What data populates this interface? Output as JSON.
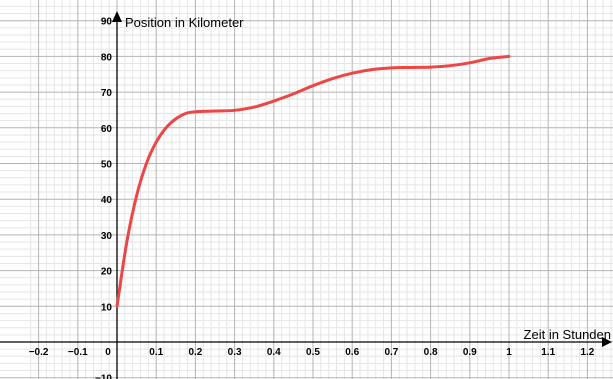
{
  "chart_data": {
    "type": "line",
    "title": "",
    "xlabel": "Zeit in Stunden",
    "ylabel": "Position in Kilometer",
    "xlim": [
      -0.22,
      1.28
    ],
    "ylim": [
      -10,
      92
    ],
    "x_ticks": [
      -0.2,
      -0.1,
      0,
      0.1,
      0.2,
      0.3,
      0.4,
      0.5,
      0.6,
      0.7,
      0.8,
      0.9,
      1,
      1.1,
      1.2
    ],
    "x_tick_labels": [
      "−0.2",
      "−0.1",
      "0",
      "0.1",
      "0.2",
      "0.3",
      "0.4",
      "0.5",
      "0.6",
      "0.7",
      "0.8",
      "0.9",
      "1",
      "1.1",
      "1.2"
    ],
    "y_ticks": [
      -10,
      10,
      20,
      30,
      40,
      50,
      60,
      70,
      80,
      90
    ],
    "y_tick_labels": [
      "−10",
      "10",
      "20",
      "30",
      "40",
      "50",
      "60",
      "70",
      "80",
      "90"
    ],
    "grid": true,
    "series": [
      {
        "color": "#f04545",
        "x": [
          0,
          0.025,
          0.05,
          0.075,
          0.1,
          0.125,
          0.15,
          0.175,
          0.2,
          0.25,
          0.3,
          0.35,
          0.4,
          0.45,
          0.5,
          0.55,
          0.6,
          0.65,
          0.7,
          0.75,
          0.8,
          0.85,
          0.9,
          0.95,
          1.0
        ],
        "y": [
          10,
          28,
          41,
          50,
          56,
          60,
          62.5,
          64,
          64.5,
          64.7,
          64.9,
          65.8,
          67.5,
          69.5,
          71.8,
          73.8,
          75.3,
          76.3,
          76.8,
          76.9,
          77,
          77.4,
          78.2,
          79.4,
          80
        ]
      }
    ]
  }
}
